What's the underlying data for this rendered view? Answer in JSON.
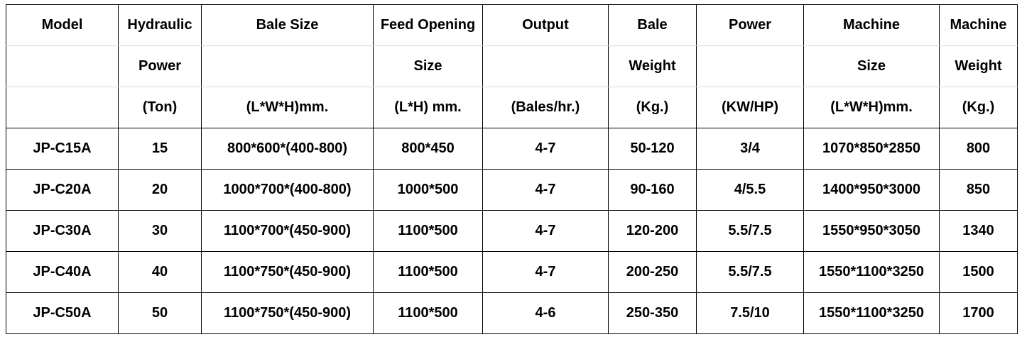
{
  "table": {
    "header": [
      [
        "Model",
        "Hydraulic",
        "Bale Size",
        "Feed Opening",
        "Output",
        "Bale",
        "Power",
        "Machine",
        "Machine"
      ],
      [
        null,
        "Power",
        null,
        "Size",
        null,
        "Weight",
        null,
        "Size",
        "Weight"
      ],
      [
        null,
        "(Ton)",
        "(L*W*H)mm.",
        "(L*H) mm.",
        "(Bales/hr.)",
        "(Kg.)",
        "(KW/HP)",
        "(L*W*H)mm.",
        "(Kg.)"
      ]
    ],
    "rows": [
      [
        "JP-C15A",
        "15",
        "800*600*(400-800)",
        "800*450",
        "4-7",
        "50-120",
        "3/4",
        "1070*850*2850",
        "800"
      ],
      [
        "JP-C20A",
        "20",
        "1000*700*(400-800)",
        "1000*500",
        "4-7",
        "90-160",
        "4/5.5",
        "1400*950*3000",
        "850"
      ],
      [
        "JP-C30A",
        "30",
        "1100*700*(450-900)",
        "1100*500",
        "4-7",
        "120-200",
        "5.5/7.5",
        "1550*950*3050",
        "1340"
      ],
      [
        "JP-C40A",
        "40",
        "1100*750*(450-900)",
        "1100*500",
        "4-7",
        "200-250",
        "5.5/7.5",
        "1550*1100*3250",
        "1500"
      ],
      [
        "JP-C50A",
        "50",
        "1100*750*(450-900)",
        "1100*500",
        "4-6",
        "250-350",
        "7.5/10",
        "1550*1100*3250",
        "1700"
      ]
    ]
  }
}
